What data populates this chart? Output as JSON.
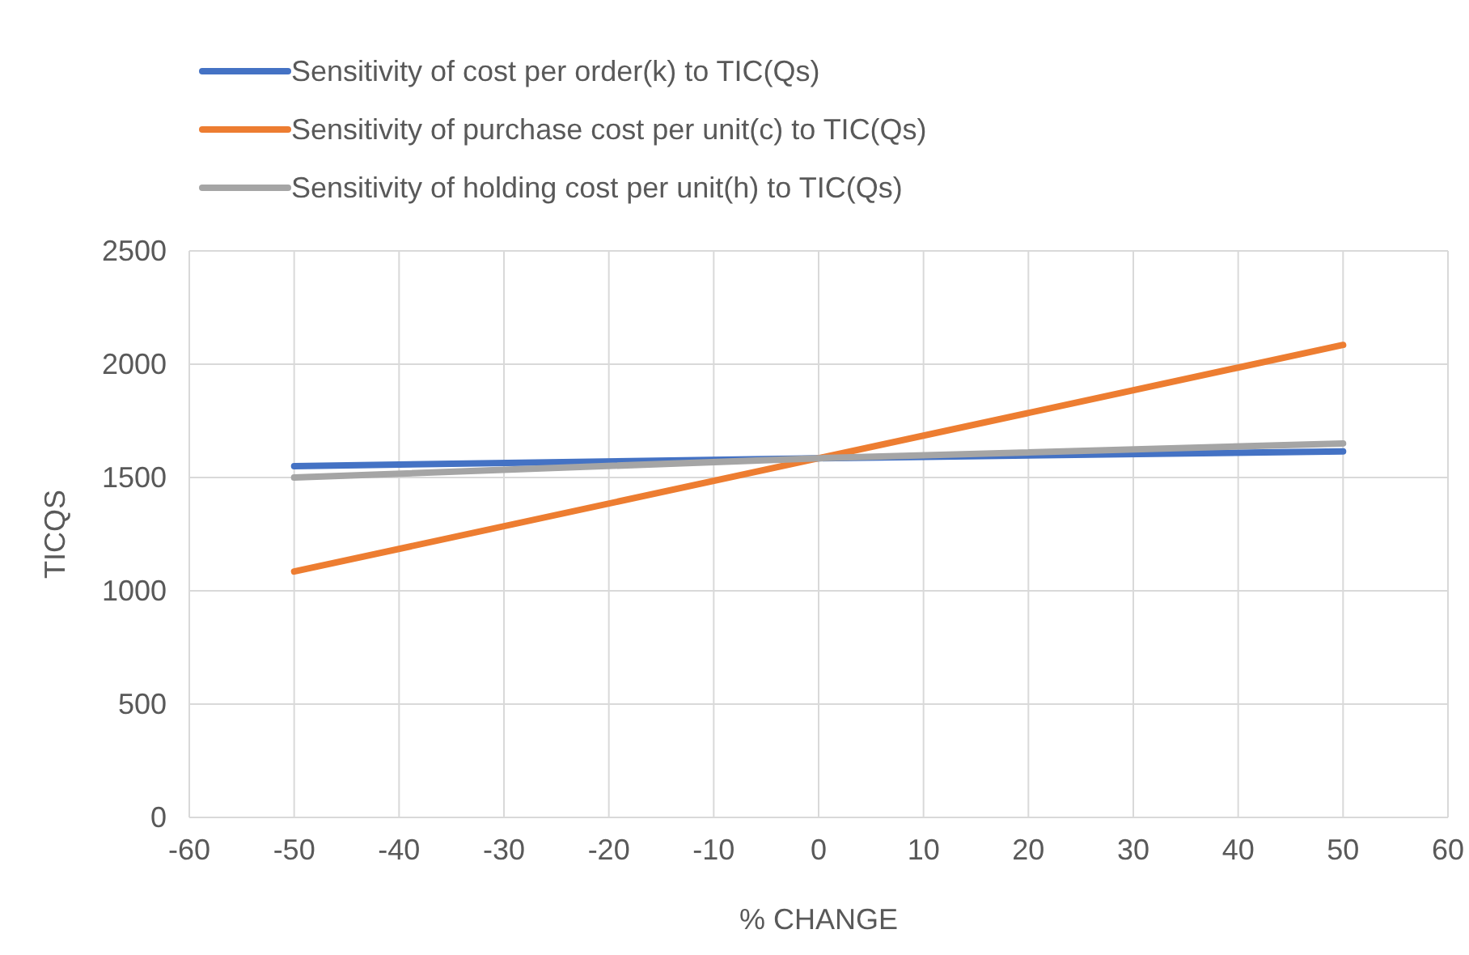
{
  "chart_data": {
    "type": "line",
    "xlabel": "% CHANGE",
    "ylabel": "TICQS",
    "x": [
      -50,
      0,
      50
    ],
    "series": [
      {
        "name": "Sensitivity of cost per order(k) to TIC(Qs)",
        "color": "#4472c4",
        "values": [
          1550,
          1585,
          1615
        ]
      },
      {
        "name": "Sensitivity of purchase cost per unit(c) to TIC(Qs)",
        "color": "#ed7d31",
        "values": [
          1085,
          1585,
          2085
        ]
      },
      {
        "name": "Sensitivity of holding cost per unit(h) to TIC(Qs)",
        "color": "#a5a5a5",
        "values": [
          1500,
          1585,
          1650
        ]
      }
    ],
    "xlim": [
      -60,
      60
    ],
    "xticks": [
      -60,
      -50,
      -40,
      -30,
      -20,
      -10,
      0,
      10,
      20,
      30,
      40,
      50,
      60
    ],
    "ylim": [
      0,
      2500
    ],
    "yticks": [
      0,
      500,
      1000,
      1500,
      2000,
      2500
    ],
    "grid": true,
    "legend": "top",
    "marker": "none",
    "line_style": "solid"
  }
}
